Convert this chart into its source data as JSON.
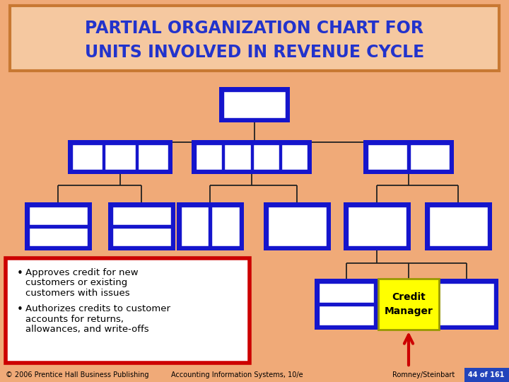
{
  "title_line1": "PARTIAL ORGANIZATION CHART FOR",
  "title_line2": "UNITS INVOLVED IN REVENUE CYCLE",
  "title_color": "#2233CC",
  "title_bg": "#F5C8A0",
  "title_border": "#C87832",
  "bg_color": "#F0AA78",
  "box_blue": "#1515CC",
  "box_white": "#FFFFFF",
  "box_yellow": "#FFFF00",
  "bullet1_line1": "Approves credit for new",
  "bullet1_line2": "customers or existing",
  "bullet1_line3": "customers with issues",
  "bullet2_line1": "Authorizes credits to customer",
  "bullet2_line2": "accounts for returns,",
  "bullet2_line3": "allowances, and write-offs",
  "footer_left": "© 2006 Prentice Hall Business Publishing",
  "footer_mid": "Accounting Information Systems, 10/e",
  "footer_right": "Romney/Steinbart",
  "footer_page": "44 of 161",
  "footer_page_bg": "#2244BB",
  "footer_page_color": "#FFFFFF"
}
